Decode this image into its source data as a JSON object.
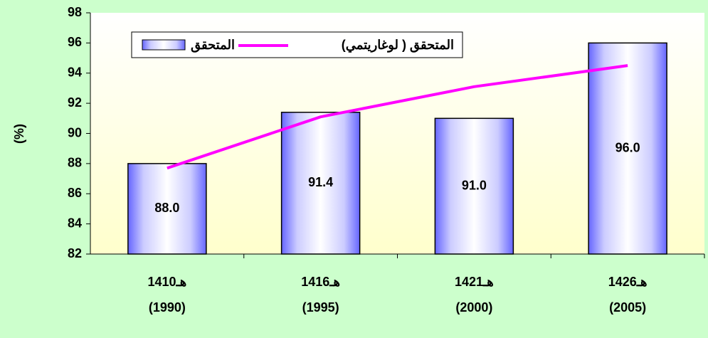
{
  "chart_data": {
    "type": "bar",
    "categories": [
      [
        "1410هـ",
        "(1990)"
      ],
      [
        "1416هـ",
        "(1995)"
      ],
      [
        "1421هـ",
        "(2000)"
      ],
      [
        "1426هـ",
        "(2005)"
      ]
    ],
    "series": [
      {
        "name": "المتحقق",
        "type": "bar",
        "color": "#ccccff",
        "values": [
          88.0,
          91.4,
          91.0,
          96.0
        ],
        "value_labels": [
          "88.0",
          "91.4",
          "91.0",
          "96.0"
        ]
      },
      {
        "name": "المتحقق ( لوغاريتمي)",
        "type": "line",
        "color": "#ff00ff",
        "values": [
          87.7,
          91.1,
          93.1,
          94.5
        ]
      }
    ],
    "ylabel": "(%)",
    "ylim": [
      82,
      98
    ],
    "yticks": [
      82,
      84,
      86,
      88,
      90,
      92,
      94,
      96,
      98
    ]
  }
}
